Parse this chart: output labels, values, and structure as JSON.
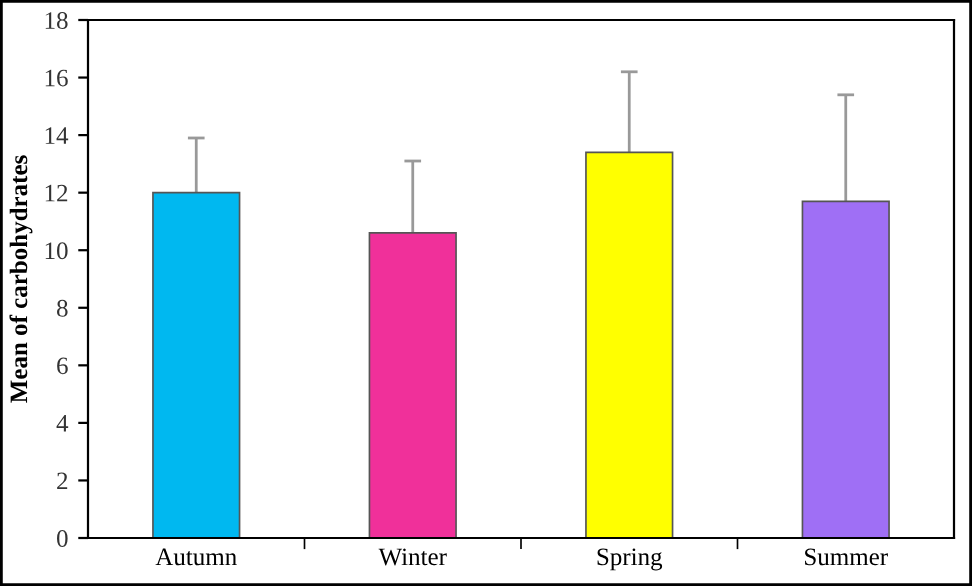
{
  "chart_data": {
    "type": "bar",
    "ylabel": "Mean of carbohydrates",
    "categories": [
      "Autumn",
      "Winter",
      "Spring",
      "Summer"
    ],
    "values": [
      12.0,
      10.6,
      13.4,
      11.7
    ],
    "colors": [
      "#00b8f0",
      "#f0309a",
      "#ffff00",
      "#9f6ff5"
    ],
    "errors": [
      1.9,
      2.5,
      2.8,
      3.7
    ],
    "ylim": [
      0,
      18
    ],
    "yticks": [
      0,
      2,
      4,
      6,
      8,
      10,
      12,
      14,
      16,
      18
    ],
    "grid": false
  }
}
